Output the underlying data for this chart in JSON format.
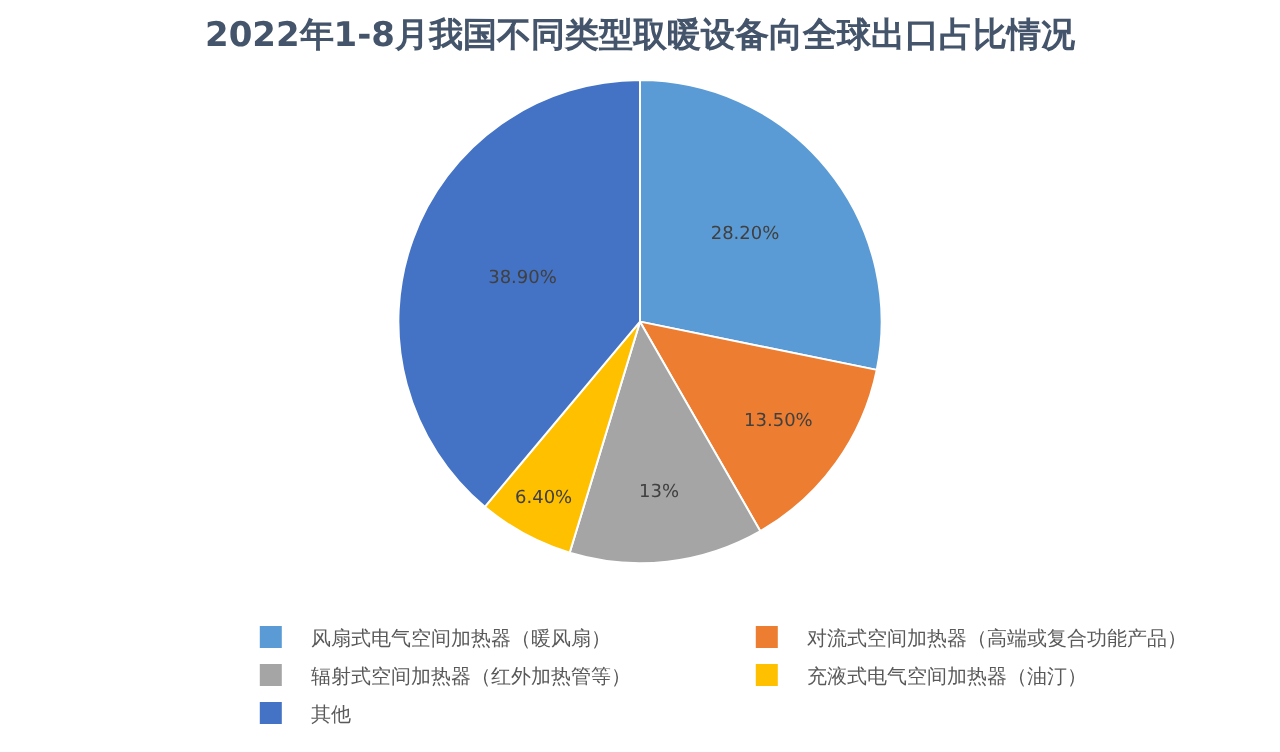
{
  "chart_data": {
    "type": "pie",
    "title": "2022年1-8月我国不同类型取暖设备向全球出口占比情况",
    "categories": [
      "风扇式电气空间加热器（暖风扇）",
      "对流式空间加热器（高端或复合功能产品）",
      "辐射式空间加热器（红外加热管等）",
      "充液式电气空间加热器（油汀）",
      "其他"
    ],
    "values": [
      28.2,
      13.5,
      13,
      6.4,
      38.9
    ],
    "value_labels": [
      "28.20%",
      "13.50%",
      "13%",
      "6.40%",
      "38.90%"
    ],
    "colors": [
      "#5b9bd5",
      "#ed7d31",
      "#a5a5a5",
      "#ffc000",
      "#4472c4"
    ],
    "legend": "bottom"
  }
}
